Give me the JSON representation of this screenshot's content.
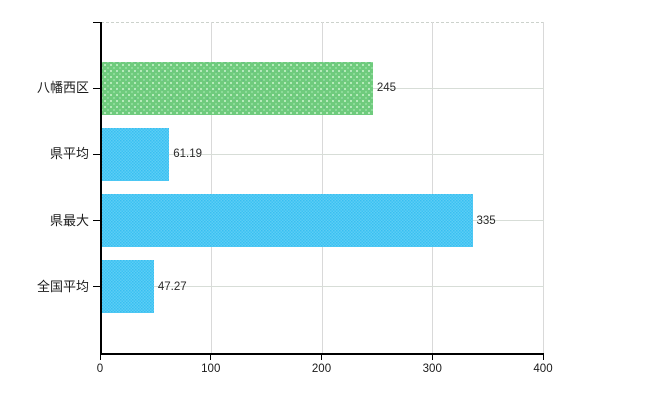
{
  "chart_data": {
    "type": "bar",
    "orientation": "horizontal",
    "title": "",
    "categories": [
      "八幡西区",
      "県平均",
      "県最大",
      "全国平均"
    ],
    "values": [
      245,
      61.19,
      335,
      47.27
    ],
    "value_labels": [
      "245",
      "61.19",
      "335",
      "47.27"
    ],
    "series": [
      {
        "name": "",
        "values": [
          245,
          61.19,
          335,
          47.27
        ]
      }
    ],
    "bar_color_roles": [
      "highlight",
      "default",
      "default",
      "default"
    ],
    "colors": {
      "highlight": "#6fcb7d",
      "default": "#3cc3f3"
    },
    "xlabel": "",
    "ylabel": "",
    "xlim": [
      0,
      400
    ],
    "x_ticks": [
      0,
      100,
      200,
      300,
      400
    ],
    "x_tick_labels": [
      "0",
      "100",
      "200",
      "300",
      "400"
    ],
    "grid": {
      "vertical": true,
      "horizontal": true,
      "top_boundary_dashed": true
    },
    "legend": "none",
    "background": "#ffffff"
  }
}
